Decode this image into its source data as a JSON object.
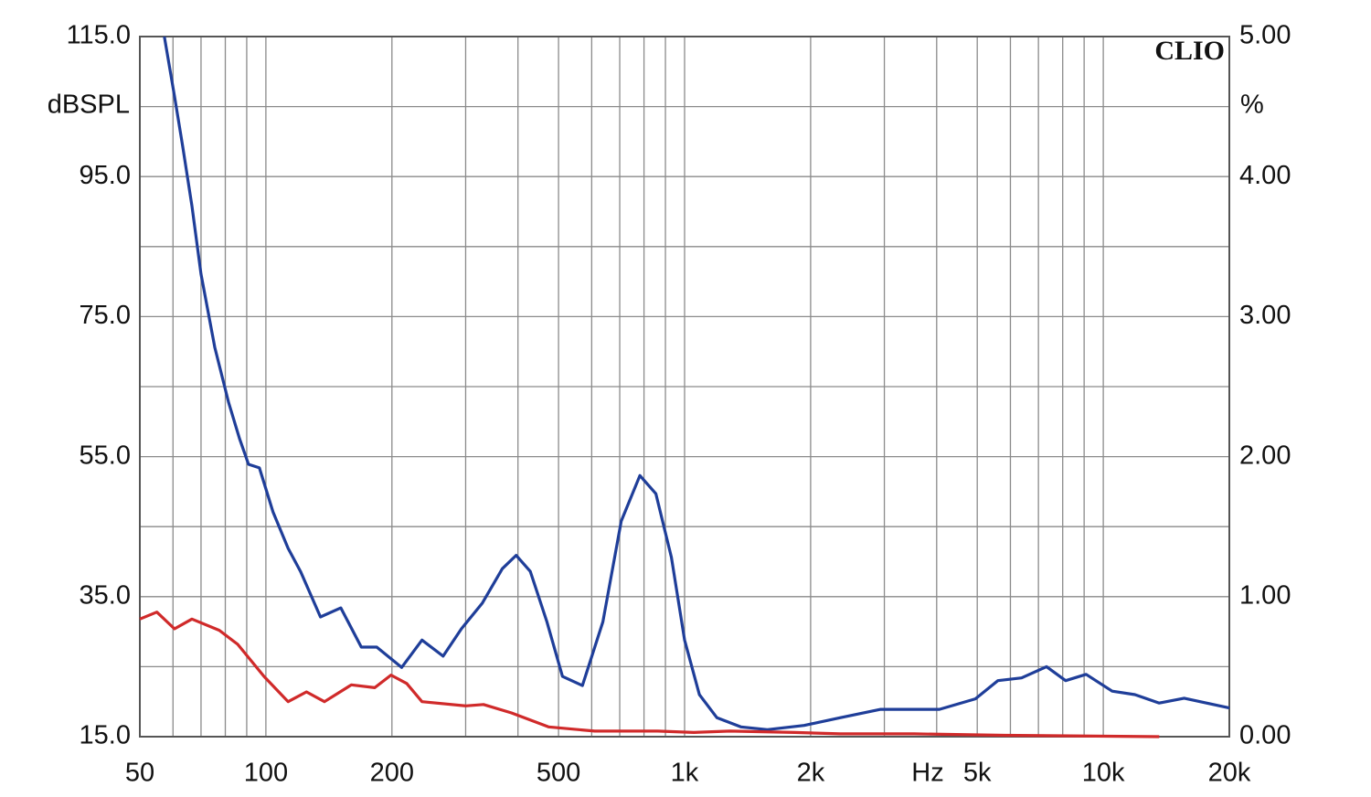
{
  "chart_data": {
    "type": "line",
    "annotation": "CLIO",
    "ylabel": "dBSPL",
    "y2label": "%",
    "xlabel": "Hz",
    "xlog": true,
    "grid": true,
    "xlim": [
      50,
      20000
    ],
    "xticks": [
      50,
      100,
      200,
      500,
      {
        "value": 1000,
        "label": "1k"
      },
      {
        "value": 2000,
        "label": "2k"
      },
      {
        "value": 5000,
        "label": "5k"
      },
      {
        "value": 10000,
        "label": "10k"
      },
      {
        "value": 20000,
        "label": "20k"
      }
    ],
    "xminorticks": [
      60,
      70,
      80,
      90,
      300,
      400,
      600,
      700,
      800,
      900,
      3000,
      4000,
      6000,
      7000,
      8000,
      9000
    ],
    "ylim": [
      15,
      115
    ],
    "yticks": [
      {
        "value": 15,
        "label": "15.0"
      },
      {
        "value": 35,
        "label": "35.0"
      },
      {
        "value": 55,
        "label": "55.0"
      },
      {
        "value": 75,
        "label": "75.0"
      },
      {
        "value": 95,
        "label": "95.0"
      },
      {
        "value": 115,
        "label": "115.0"
      }
    ],
    "yminorticks": [
      25,
      45,
      65,
      85,
      105
    ],
    "y2lim": [
      0,
      5
    ],
    "y2ticks": [
      {
        "value": 0,
        "label": "0.00"
      },
      {
        "value": 1,
        "label": "1.00"
      },
      {
        "value": 2,
        "label": "2.00"
      },
      {
        "value": 3,
        "label": "3.00"
      },
      {
        "value": 4,
        "label": "4.00"
      },
      {
        "value": 5,
        "label": "5.00"
      }
    ],
    "series": [
      {
        "color": "#1f3e99",
        "axis": "y",
        "x": [
          57.2,
          60.5,
          63.3,
          66.6,
          70,
          75.5,
          81.4,
          86.5,
          90.9,
          96.5,
          104,
          113,
          121,
          135,
          151,
          169,
          184,
          211,
          236,
          265,
          293,
          329,
          367,
          396,
          428,
          469,
          511,
          570,
          638,
          706,
          782,
          854,
          930,
          1000,
          1085,
          1195,
          1362,
          1577,
          1930,
          2350,
          2940,
          4060,
          4950,
          5600,
          6380,
          7320,
          8130,
          9100,
          10500,
          11900,
          13600,
          15600,
          20000
        ],
        "values": [
          115,
          106.5,
          99.3,
          90.8,
          81.1,
          70.6,
          62.8,
          57.6,
          53.9,
          53.4,
          47.1,
          41.9,
          38.6,
          32.1,
          33.4,
          27.8,
          27.8,
          24.9,
          28.8,
          26.5,
          30.4,
          34.1,
          39,
          40.9,
          38.6,
          31.4,
          23.6,
          22.3,
          31.4,
          45.8,
          52.3,
          49.7,
          40.6,
          28.8,
          21,
          17.7,
          16.4,
          16,
          16.6,
          17.7,
          18.9,
          18.9,
          20.4,
          23,
          23.4,
          25,
          23,
          23.9,
          21.5,
          21,
          19.8,
          20.5,
          19.1
        ]
      },
      {
        "color": "#d02a2a",
        "axis": "y2",
        "x": [
          50,
          54.9,
          60.5,
          66.6,
          77.4,
          85.6,
          99,
          113,
          125,
          138,
          160,
          182,
          199,
          217,
          236,
          300,
          331,
          386,
          473,
          610,
          862,
          1051,
          1283,
          1833,
          2350,
          3530,
          5800,
          13600
        ],
        "values": [
          0.84,
          0.89,
          0.77,
          0.84,
          0.76,
          0.66,
          0.43,
          0.25,
          0.32,
          0.25,
          0.37,
          0.35,
          0.44,
          0.38,
          0.25,
          0.22,
          0.23,
          0.17,
          0.07,
          0.04,
          0.04,
          0.03,
          0.04,
          0.03,
          0.02,
          0.02,
          0.01,
          0
        ]
      }
    ]
  }
}
